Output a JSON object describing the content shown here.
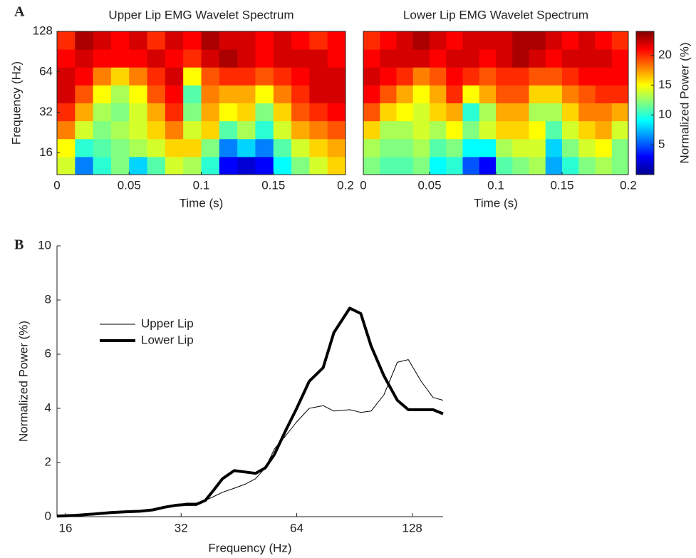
{
  "chart_data": [
    {
      "type": "heatmap",
      "panel": "A",
      "title": "Upper Lip EMG Wavelet Spectrum",
      "x_label": "Time (s)",
      "y_label": "Frequency (Hz)",
      "xlim": [
        0,
        0.2
      ],
      "xticks": [
        0,
        0.05,
        0.1,
        0.15,
        0.2
      ],
      "ylim": [
        11,
        128
      ],
      "yticks": [
        16,
        32,
        64,
        128
      ],
      "log_y": true,
      "colormap": "jet",
      "zlim": [
        0,
        24
      ],
      "z": [
        [
          14,
          6,
          10,
          12,
          8,
          11,
          14,
          13,
          10,
          3,
          2,
          3,
          9,
          12,
          14,
          16
        ],
        [
          15,
          10,
          11,
          12,
          13,
          14,
          16,
          16,
          12,
          6,
          8,
          6,
          11,
          14,
          16,
          17
        ],
        [
          18,
          14,
          12,
          13,
          14,
          16,
          18,
          14,
          16,
          11,
          13,
          10,
          14,
          17,
          18,
          19
        ],
        [
          20,
          17,
          13,
          12,
          14,
          17,
          20,
          12,
          17,
          15,
          16,
          12,
          16,
          19,
          20,
          21
        ],
        [
          22,
          19,
          15,
          13,
          15,
          19,
          21,
          11,
          18,
          17,
          17,
          15,
          18,
          20,
          22,
          22
        ],
        [
          22,
          21,
          18,
          16,
          18,
          20,
          22,
          15,
          19,
          20,
          20,
          19,
          20,
          21,
          22,
          22
        ],
        [
          21,
          22,
          21,
          21,
          21,
          22,
          21,
          20,
          22,
          23,
          22,
          21,
          22,
          22,
          22,
          21
        ],
        [
          20,
          23,
          22,
          21,
          22,
          20,
          22,
          21,
          23,
          22,
          22,
          21,
          22,
          21,
          20,
          21
        ]
      ]
    },
    {
      "type": "heatmap",
      "title": "Lower Lip EMG Wavelet Spectrum",
      "x_label": "Time (s)",
      "xlim": [
        0,
        0.2
      ],
      "xticks": [
        0,
        0.05,
        0.1,
        0.15,
        0.2
      ],
      "ylim": [
        11,
        128
      ],
      "log_y": true,
      "colormap": "jet",
      "zlim": [
        0,
        24
      ],
      "colorbar": {
        "label": "Normalized Power (%)",
        "lim": [
          0,
          24
        ],
        "ticks": [
          5,
          10,
          15,
          20
        ]
      },
      "z": [
        [
          12,
          11,
          11,
          12,
          9,
          10,
          5,
          3,
          11,
          12,
          13,
          7,
          10,
          12,
          13,
          12
        ],
        [
          13,
          12,
          12,
          13,
          11,
          12,
          9,
          9,
          13,
          14,
          14,
          8,
          12,
          14,
          15,
          12
        ],
        [
          16,
          13,
          13,
          14,
          13,
          15,
          12,
          14,
          16,
          16,
          15,
          11,
          14,
          16,
          17,
          14
        ],
        [
          19,
          16,
          15,
          14,
          16,
          17,
          10,
          13,
          17,
          17,
          13,
          13,
          16,
          18,
          18,
          17
        ],
        [
          21,
          19,
          17,
          15,
          17,
          20,
          15,
          17,
          19,
          19,
          16,
          16,
          18,
          19,
          20,
          20
        ],
        [
          22,
          21,
          20,
          18,
          19,
          21,
          20,
          19,
          20,
          20,
          19,
          19,
          20,
          21,
          21,
          21
        ],
        [
          21,
          22,
          22,
          22,
          21,
          22,
          22,
          21,
          22,
          23,
          22,
          21,
          22,
          22,
          22,
          21
        ],
        [
          20,
          21,
          22,
          23,
          22,
          21,
          22,
          22,
          22,
          23,
          23,
          22,
          21,
          22,
          21,
          20
        ]
      ]
    },
    {
      "type": "line",
      "panel": "B",
      "x_label": "Frequency (Hz)",
      "y_label": "Normalized Power (%)",
      "log_x": true,
      "xlim": [
        15.2,
        154
      ],
      "xticks": [
        16,
        32,
        64,
        128
      ],
      "ylim": [
        0,
        10
      ],
      "yticks": [
        0,
        2,
        4,
        6,
        8,
        10
      ],
      "legend": "upper left",
      "x": [
        15.2,
        17,
        19,
        21,
        23,
        25,
        27,
        29,
        31,
        33,
        35,
        37,
        39,
        41,
        44,
        47,
        50,
        53,
        56,
        60,
        64,
        69,
        75,
        80,
        88,
        94,
        100,
        108,
        117,
        125,
        135,
        145,
        154
      ],
      "series": [
        {
          "name": "Upper Lip",
          "color": "#000000",
          "linewidth": 1,
          "values": [
            0.05,
            0.05,
            0.08,
            0.12,
            0.18,
            0.2,
            0.28,
            0.38,
            0.42,
            0.5,
            0.5,
            0.6,
            0.75,
            0.9,
            1.05,
            1.2,
            1.4,
            1.8,
            2.5,
            3.0,
            3.5,
            4.0,
            4.1,
            3.9,
            3.95,
            3.85,
            3.9,
            4.5,
            5.7,
            5.8,
            5.0,
            4.4,
            4.3
          ]
        },
        {
          "name": "Lower Lip",
          "color": "#000000",
          "linewidth": 4,
          "values": [
            0.02,
            0.05,
            0.1,
            0.15,
            0.18,
            0.2,
            0.25,
            0.35,
            0.42,
            0.45,
            0.45,
            0.6,
            1.0,
            1.4,
            1.7,
            1.65,
            1.6,
            1.8,
            2.3,
            3.2,
            4.0,
            5.0,
            5.5,
            6.8,
            7.7,
            7.5,
            6.3,
            5.2,
            4.3,
            3.95,
            3.95,
            3.95,
            3.8
          ]
        }
      ]
    }
  ]
}
